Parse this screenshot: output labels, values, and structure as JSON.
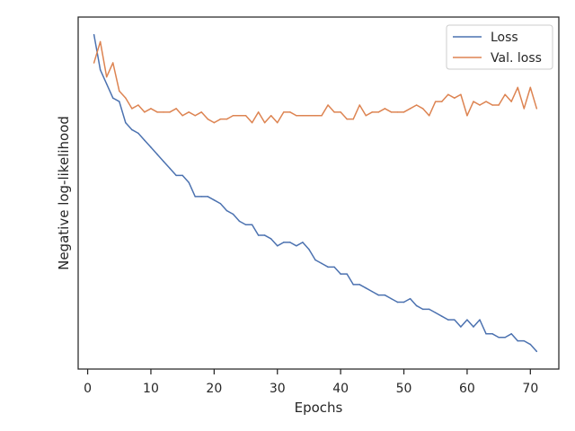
{
  "chart_data": {
    "type": "line",
    "xlabel": "Epochs",
    "ylabel": "Negative log-likelihood",
    "xlim": [
      -1.5,
      74.5
    ],
    "ylim": [
      0.0,
      1.0
    ],
    "x_ticks": [
      0,
      10,
      20,
      30,
      40,
      50,
      60,
      70
    ],
    "y_ticks_shown": false,
    "grid": false,
    "legend_position": "top-right",
    "series": [
      {
        "name": "Loss",
        "color": "#4c72b0",
        "x": [
          1,
          2,
          3,
          4,
          5,
          6,
          7,
          8,
          9,
          10,
          11,
          12,
          13,
          14,
          15,
          16,
          17,
          18,
          19,
          20,
          21,
          22,
          23,
          24,
          25,
          26,
          27,
          28,
          29,
          30,
          31,
          32,
          33,
          34,
          35,
          36,
          37,
          38,
          39,
          40,
          41,
          42,
          43,
          44,
          45,
          46,
          47,
          48,
          49,
          50,
          51,
          52,
          53,
          54,
          55,
          56,
          57,
          58,
          59,
          60,
          61,
          62,
          63,
          64,
          65,
          66,
          67,
          68,
          69,
          70,
          71
        ],
        "values": [
          0.95,
          0.85,
          0.81,
          0.77,
          0.76,
          0.7,
          0.68,
          0.67,
          0.65,
          0.63,
          0.61,
          0.59,
          0.57,
          0.55,
          0.55,
          0.53,
          0.49,
          0.49,
          0.49,
          0.48,
          0.47,
          0.45,
          0.44,
          0.42,
          0.41,
          0.41,
          0.38,
          0.38,
          0.37,
          0.35,
          0.36,
          0.36,
          0.35,
          0.36,
          0.34,
          0.31,
          0.3,
          0.29,
          0.29,
          0.27,
          0.27,
          0.24,
          0.24,
          0.23,
          0.22,
          0.21,
          0.21,
          0.2,
          0.19,
          0.19,
          0.2,
          0.18,
          0.17,
          0.17,
          0.16,
          0.15,
          0.14,
          0.14,
          0.12,
          0.14,
          0.12,
          0.14,
          0.1,
          0.1,
          0.09,
          0.09,
          0.1,
          0.08,
          0.08,
          0.07,
          0.05
        ]
      },
      {
        "name": "Val. loss",
        "color": "#dd8452",
        "x": [
          1,
          2,
          3,
          4,
          5,
          6,
          7,
          8,
          9,
          10,
          11,
          12,
          13,
          14,
          15,
          16,
          17,
          18,
          19,
          20,
          21,
          22,
          23,
          24,
          25,
          26,
          27,
          28,
          29,
          30,
          31,
          32,
          33,
          34,
          35,
          36,
          37,
          38,
          39,
          40,
          41,
          42,
          43,
          44,
          45,
          46,
          47,
          48,
          49,
          50,
          51,
          52,
          53,
          54,
          55,
          56,
          57,
          58,
          59,
          60,
          61,
          62,
          63,
          64,
          65,
          66,
          67,
          68,
          69,
          70,
          71
        ],
        "values": [
          0.87,
          0.93,
          0.83,
          0.87,
          0.79,
          0.77,
          0.74,
          0.75,
          0.73,
          0.74,
          0.73,
          0.73,
          0.73,
          0.74,
          0.72,
          0.73,
          0.72,
          0.73,
          0.71,
          0.7,
          0.71,
          0.71,
          0.72,
          0.72,
          0.72,
          0.7,
          0.73,
          0.7,
          0.72,
          0.7,
          0.73,
          0.73,
          0.72,
          0.72,
          0.72,
          0.72,
          0.72,
          0.75,
          0.73,
          0.73,
          0.71,
          0.71,
          0.75,
          0.72,
          0.73,
          0.73,
          0.74,
          0.73,
          0.73,
          0.73,
          0.74,
          0.75,
          0.74,
          0.72,
          0.76,
          0.76,
          0.78,
          0.77,
          0.78,
          0.72,
          0.76,
          0.75,
          0.76,
          0.75,
          0.75,
          0.78,
          0.76,
          0.8,
          0.74,
          0.8,
          0.74
        ]
      }
    ]
  }
}
